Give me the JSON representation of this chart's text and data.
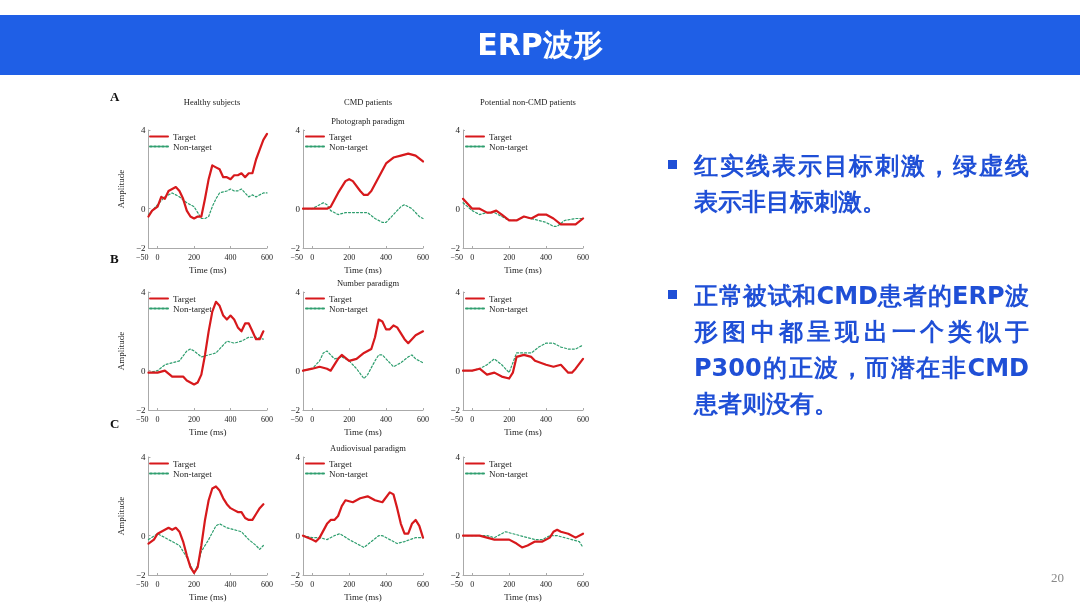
{
  "chart_data": [
    {
      "type": "line",
      "title": "Healthy subjects",
      "annotations": [
        "A"
      ],
      "xlabel": "Time (ms)",
      "ylabel": "Amplitude",
      "xlim": [
        -50,
        600
      ],
      "ylim": [
        -2,
        4
      ],
      "xticks": [
        -50,
        0,
        200,
        400,
        600
      ],
      "yticks": [
        -2,
        0,
        4
      ],
      "grid": false,
      "legend": "top left",
      "marker": "none",
      "series": [
        {
          "name": "Target",
          "color": "#d7191c",
          "line_style": "solid",
          "x": [
            -50,
            -30,
            0,
            20,
            40,
            60,
            80,
            100,
            120,
            140,
            160,
            180,
            200,
            220,
            240,
            260,
            280,
            300,
            320,
            340,
            360,
            380,
            400,
            420,
            440,
            460,
            480,
            500,
            520,
            540,
            560,
            580,
            600
          ],
          "values": [
            -0.4,
            -0.1,
            0.1,
            0.6,
            0.5,
            0.9,
            1.0,
            1.1,
            0.9,
            0.5,
            -0.1,
            -0.4,
            -0.5,
            -0.4,
            -0.4,
            0.5,
            1.5,
            2.2,
            2.1,
            2.0,
            1.6,
            1.6,
            1.5,
            1.7,
            1.7,
            1.8,
            1.6,
            1.8,
            1.8,
            2.5,
            3.0,
            3.5,
            3.8
          ]
        },
        {
          "name": "Non-target",
          "color": "#2e9e6e",
          "line_style": "dotted",
          "x": [
            -50,
            0,
            40,
            80,
            120,
            160,
            200,
            220,
            240,
            260,
            280,
            300,
            320,
            340,
            380,
            400,
            420,
            440,
            460,
            480,
            500,
            520,
            540,
            560,
            580,
            600
          ],
          "values": [
            -0.3,
            0.2,
            0.6,
            0.8,
            0.6,
            0.3,
            0.1,
            -0.2,
            -0.5,
            -0.5,
            -0.4,
            0.1,
            0.5,
            0.8,
            0.9,
            1.0,
            0.9,
            0.9,
            1.0,
            0.8,
            0.6,
            0.7,
            0.6,
            0.7,
            0.8,
            0.8
          ]
        }
      ]
    },
    {
      "type": "line",
      "title": "CMD patients",
      "subtitle": "Photograph paradigm",
      "xlabel": "Time (ms)",
      "xlim": [
        -50,
        600
      ],
      "ylim": [
        -2,
        4
      ],
      "xticks": [
        -50,
        0,
        200,
        400,
        600
      ],
      "yticks": [
        -2,
        0,
        4
      ],
      "grid": false,
      "legend": "top left",
      "marker": "none",
      "series": [
        {
          "name": "Target",
          "color": "#d7191c",
          "line_style": "solid",
          "x": [
            -50,
            0,
            80,
            100,
            140,
            180,
            200,
            220,
            260,
            280,
            300,
            320,
            360,
            400,
            440,
            480,
            520,
            560,
            600
          ],
          "values": [
            0,
            0,
            0,
            0.1,
            0.8,
            1.4,
            1.5,
            1.4,
            0.9,
            0.7,
            0.7,
            0.9,
            1.6,
            2.3,
            2.6,
            2.7,
            2.8,
            2.7,
            2.4
          ]
        },
        {
          "name": "Non-target",
          "color": "#2e9e6e",
          "line_style": "dotted",
          "x": [
            -50,
            0,
            40,
            60,
            80,
            100,
            140,
            180,
            220,
            260,
            300,
            340,
            380,
            400,
            440,
            480,
            500,
            540,
            580,
            600
          ],
          "values": [
            0,
            0,
            0.2,
            0.3,
            0.2,
            -0.1,
            -0.3,
            -0.2,
            -0.2,
            -0.2,
            -0.2,
            -0.5,
            -0.7,
            -0.7,
            -0.3,
            0.1,
            0.2,
            0,
            -0.4,
            -0.5
          ]
        }
      ]
    },
    {
      "type": "line",
      "title": "Potential non-CMD patients",
      "xlabel": "Time (ms)",
      "xlim": [
        -50,
        600
      ],
      "ylim": [
        -2,
        4
      ],
      "xticks": [
        -50,
        0,
        200,
        400,
        600
      ],
      "yticks": [
        -2,
        0,
        4
      ],
      "grid": false,
      "legend": "top left",
      "marker": "none",
      "series": [
        {
          "name": "Target",
          "color": "#d7191c",
          "line_style": "solid",
          "x": [
            -50,
            -20,
            0,
            20,
            40,
            60,
            80,
            100,
            130,
            160,
            200,
            240,
            280,
            320,
            360,
            400,
            440,
            480,
            520,
            560,
            600
          ],
          "values": [
            0.5,
            0.2,
            0,
            0,
            0,
            -0.1,
            -0.2,
            -0.2,
            -0.1,
            -0.3,
            -0.6,
            -0.6,
            -0.4,
            -0.5,
            -0.3,
            -0.3,
            -0.5,
            -0.8,
            -0.8,
            -0.8,
            -0.5
          ]
        },
        {
          "name": "Non-target",
          "color": "#2e9e6e",
          "line_style": "dotted",
          "x": [
            -50,
            0,
            40,
            80,
            120,
            160,
            200,
            240,
            280,
            320,
            360,
            400,
            440,
            460,
            500,
            560,
            600
          ],
          "values": [
            0.3,
            -0.1,
            -0.3,
            -0.2,
            -0.2,
            -0.4,
            -0.6,
            -0.6,
            -0.4,
            -0.5,
            -0.6,
            -0.7,
            -0.9,
            -0.9,
            -0.6,
            -0.5,
            -0.5
          ]
        }
      ]
    },
    {
      "type": "line",
      "annotations": [
        "B"
      ],
      "xlabel": "Time (ms)",
      "ylabel": "Amplitude",
      "xlim": [
        -50,
        600
      ],
      "ylim": [
        -2,
        4
      ],
      "xticks": [
        -50,
        0,
        200,
        400,
        600
      ],
      "yticks": [
        -2,
        0,
        4
      ],
      "grid": false,
      "legend": "top left",
      "marker": "none",
      "series": [
        {
          "name": "Target",
          "color": "#d7191c",
          "line_style": "solid",
          "x": [
            -50,
            0,
            40,
            80,
            120,
            140,
            160,
            200,
            220,
            240,
            260,
            280,
            300,
            320,
            340,
            360,
            380,
            400,
            420,
            440,
            460,
            480,
            500,
            520,
            540,
            560,
            580
          ],
          "values": [
            -0.1,
            -0.1,
            0,
            -0.3,
            -0.3,
            -0.3,
            -0.5,
            -0.7,
            -0.6,
            -0.2,
            0.8,
            2.0,
            3.0,
            3.5,
            3.3,
            2.8,
            2.6,
            2.8,
            2.6,
            2.2,
            2.0,
            2.4,
            2.4,
            2.0,
            1.6,
            1.6,
            2.0
          ]
        },
        {
          "name": "Non-target",
          "color": "#2e9e6e",
          "line_style": "dotted",
          "x": [
            -50,
            0,
            40,
            80,
            120,
            160,
            180,
            200,
            240,
            280,
            320,
            360,
            380,
            420,
            460,
            500,
            540,
            580
          ],
          "values": [
            -0.1,
            0,
            0.3,
            0.4,
            0.5,
            1.0,
            1.1,
            1.0,
            0.7,
            0.8,
            0.9,
            1.3,
            1.5,
            1.4,
            1.5,
            1.7,
            1.7,
            1.6
          ]
        }
      ]
    },
    {
      "type": "line",
      "subtitle": "Number paradigm",
      "xlabel": "Time (ms)",
      "xlim": [
        -50,
        600
      ],
      "ylim": [
        -2,
        4
      ],
      "xticks": [
        -50,
        0,
        200,
        400,
        600
      ],
      "yticks": [
        -2,
        0,
        4
      ],
      "grid": false,
      "legend": "top left",
      "marker": "none",
      "series": [
        {
          "name": "Target",
          "color": "#d7191c",
          "line_style": "solid",
          "x": [
            -50,
            0,
            40,
            80,
            100,
            140,
            160,
            200,
            240,
            280,
            320,
            340,
            360,
            380,
            400,
            420,
            440,
            460,
            500,
            520,
            560,
            600
          ],
          "values": [
            0,
            0.1,
            0.2,
            0.1,
            0,
            0.6,
            0.8,
            0.5,
            0.6,
            0.9,
            1.1,
            1.7,
            2.6,
            2.5,
            2.1,
            2.1,
            2.3,
            2.2,
            1.6,
            1.4,
            1.8,
            2.0
          ]
        },
        {
          "name": "Non-target",
          "color": "#2e9e6e",
          "line_style": "dotted",
          "x": [
            -50,
            0,
            40,
            60,
            80,
            120,
            160,
            200,
            240,
            280,
            300,
            340,
            360,
            380,
            420,
            440,
            480,
            520,
            540,
            560,
            600
          ],
          "values": [
            0,
            0.1,
            0.5,
            0.9,
            1.0,
            0.6,
            0.7,
            0.5,
            0.1,
            -0.4,
            -0.2,
            0.5,
            0.8,
            0.8,
            0.4,
            0.2,
            0.4,
            0.7,
            0.8,
            0.6,
            0.4
          ]
        }
      ]
    },
    {
      "type": "line",
      "xlabel": "Time (ms)",
      "xlim": [
        -50,
        600
      ],
      "ylim": [
        -2,
        4
      ],
      "xticks": [
        -50,
        0,
        200,
        400,
        600
      ],
      "yticks": [
        -2,
        0,
        4
      ],
      "grid": false,
      "legend": "top left",
      "marker": "none",
      "series": [
        {
          "name": "Target",
          "color": "#d7191c",
          "line_style": "solid",
          "x": [
            -50,
            0,
            40,
            80,
            120,
            160,
            200,
            220,
            240,
            280,
            320,
            340,
            400,
            440,
            480,
            520,
            540,
            560,
            600
          ],
          "values": [
            0,
            0,
            0.1,
            -0.2,
            -0.1,
            -0.3,
            -0.4,
            -0.1,
            0.7,
            0.8,
            0.7,
            0.5,
            0.3,
            0.2,
            0.3,
            -0.1,
            -0.1,
            0.1,
            0.6
          ]
        },
        {
          "name": "Non-target",
          "color": "#2e9e6e",
          "line_style": "dotted",
          "x": [
            -50,
            0,
            40,
            80,
            120,
            160,
            200,
            240,
            280,
            320,
            360,
            400,
            440,
            480,
            520,
            560,
            600
          ],
          "values": [
            0,
            0,
            0.1,
            0.3,
            0.6,
            0.3,
            -0.1,
            0.9,
            0.9,
            0.9,
            1.2,
            1.4,
            1.4,
            1.2,
            1.1,
            1.1,
            1.3
          ]
        }
      ]
    },
    {
      "type": "line",
      "annotations": [
        "C"
      ],
      "xlabel": "Time (ms)",
      "ylabel": "Amplitude",
      "xlim": [
        -50,
        600
      ],
      "ylim": [
        -2,
        4
      ],
      "xticks": [
        -50,
        0,
        200,
        400,
        600
      ],
      "yticks": [
        -2,
        0,
        4
      ],
      "grid": false,
      "legend": "top left",
      "marker": "none",
      "series": [
        {
          "name": "Target",
          "color": "#d7191c",
          "line_style": "solid",
          "x": [
            -50,
            -20,
            0,
            20,
            40,
            60,
            80,
            100,
            120,
            140,
            160,
            180,
            200,
            220,
            240,
            260,
            280,
            300,
            320,
            340,
            360,
            380,
            400,
            420,
            440,
            460,
            480,
            500,
            520,
            540,
            560,
            580
          ],
          "values": [
            -0.4,
            -0.2,
            0.1,
            0.2,
            0.3,
            0.4,
            0.3,
            0.4,
            0.2,
            -0.3,
            -1.0,
            -1.6,
            -1.9,
            -1.6,
            -0.5,
            0.8,
            1.8,
            2.4,
            2.5,
            2.3,
            1.9,
            1.6,
            1.4,
            1.3,
            1.2,
            1.2,
            0.9,
            0.8,
            0.8,
            1.1,
            1.4,
            1.6
          ]
        },
        {
          "name": "Non-target",
          "color": "#2e9e6e",
          "line_style": "dotted",
          "x": [
            -50,
            0,
            40,
            80,
            120,
            160,
            200,
            220,
            240,
            280,
            320,
            340,
            380,
            420,
            460,
            500,
            540,
            560,
            580
          ],
          "values": [
            -0.2,
            0.1,
            -0.1,
            -0.3,
            -0.5,
            -1.1,
            -1.9,
            -1.5,
            -0.8,
            -0.2,
            0.5,
            0.6,
            0.4,
            0.3,
            0.2,
            -0.2,
            -0.5,
            -0.7,
            -0.5
          ]
        }
      ]
    },
    {
      "type": "line",
      "subtitle": "Audiovisual paradigm",
      "xlabel": "Time (ms)",
      "xlim": [
        -50,
        600
      ],
      "ylim": [
        -2,
        4
      ],
      "xticks": [
        -50,
        0,
        200,
        400,
        600
      ],
      "yticks": [
        -2,
        0,
        4
      ],
      "grid": false,
      "legend": "top left",
      "marker": "none",
      "series": [
        {
          "name": "Target",
          "color": "#d7191c",
          "line_style": "solid",
          "x": [
            -50,
            0,
            20,
            40,
            80,
            100,
            120,
            140,
            160,
            180,
            220,
            260,
            300,
            340,
            380,
            420,
            440,
            460,
            480,
            500,
            520,
            540,
            560,
            580,
            600
          ],
          "values": [
            0,
            -0.2,
            -0.3,
            -0.1,
            0.6,
            0.8,
            0.8,
            1.0,
            1.5,
            1.8,
            1.7,
            1.9,
            2.0,
            1.8,
            1.7,
            2.2,
            2.1,
            1.4,
            0.6,
            0.1,
            0.1,
            0.6,
            0.8,
            0.5,
            -0.1
          ]
        },
        {
          "name": "Non-target",
          "color": "#2e9e6e",
          "line_style": "dotted",
          "x": [
            -50,
            0,
            40,
            80,
            120,
            150,
            200,
            240,
            280,
            320,
            360,
            380,
            420,
            460,
            500,
            560,
            600
          ],
          "values": [
            0,
            -0.1,
            -0.1,
            -0.2,
            0,
            0.1,
            -0.2,
            -0.4,
            -0.6,
            -0.3,
            0,
            0,
            -0.2,
            -0.4,
            -0.3,
            -0.1,
            -0.1
          ]
        }
      ]
    },
    {
      "type": "line",
      "xlabel": "Time (ms)",
      "xlim": [
        -50,
        600
      ],
      "ylim": [
        -2,
        4
      ],
      "xticks": [
        -50,
        0,
        200,
        400,
        600
      ],
      "yticks": [
        -2,
        0,
        4
      ],
      "grid": false,
      "legend": "top left",
      "marker": "none",
      "series": [
        {
          "name": "Target",
          "color": "#d7191c",
          "line_style": "solid",
          "x": [
            -50,
            0,
            40,
            80,
            120,
            160,
            200,
            240,
            270,
            300,
            340,
            380,
            420,
            440,
            460,
            480,
            520,
            560,
            600
          ],
          "values": [
            0,
            0,
            0,
            -0.1,
            -0.2,
            -0.2,
            -0.2,
            -0.4,
            -0.6,
            -0.5,
            -0.3,
            -0.3,
            -0.1,
            0.2,
            0.3,
            0.2,
            0.1,
            -0.1,
            0.1
          ]
        },
        {
          "name": "Non-target",
          "color": "#2e9e6e",
          "line_style": "dotted",
          "x": [
            -50,
            0,
            40,
            80,
            120,
            160,
            180,
            220,
            260,
            300,
            340,
            380,
            420,
            460,
            500,
            540,
            580,
            600
          ],
          "values": [
            0,
            0,
            0,
            0,
            -0.1,
            0.1,
            0.2,
            0.1,
            0,
            -0.1,
            -0.2,
            -0.2,
            0,
            0,
            -0.1,
            -0.2,
            -0.3,
            -0.6
          ]
        }
      ]
    },
    {
      "type": "other",
      "title": "ERP波形",
      "annotations": [
        "红实线表示目标刺激，绿虚线表示非目标刺激。",
        "正常被试和CMD患者的ERP波形图中都呈现出一个类似于P300的正波，而潜在非CMD患者则没有。",
        "20"
      ]
    }
  ]
}
